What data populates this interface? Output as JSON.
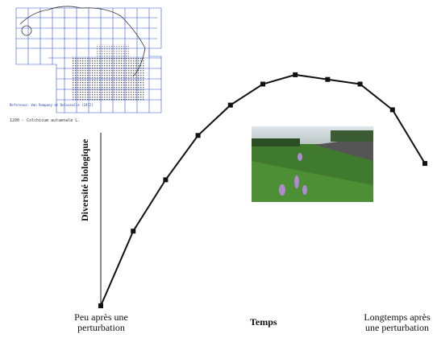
{
  "map_caption": "1200 - Colchicum autumnale L.",
  "chart_data": {
    "type": "line",
    "x_label": "Temps",
    "y_label": "Diversité biologique",
    "categories": [
      "Peu après une perturbation",
      null,
      null,
      null,
      null,
      null,
      null,
      null,
      null,
      null,
      "Longtemps après une perturbation"
    ],
    "series": [
      {
        "name": "Diversité biologique",
        "color": "#111111",
        "values": [
          0,
          32,
          54,
          73,
          86,
          95,
          99,
          97,
          95,
          84,
          61
        ]
      }
    ],
    "ylim": [
      0,
      100
    ]
  }
}
